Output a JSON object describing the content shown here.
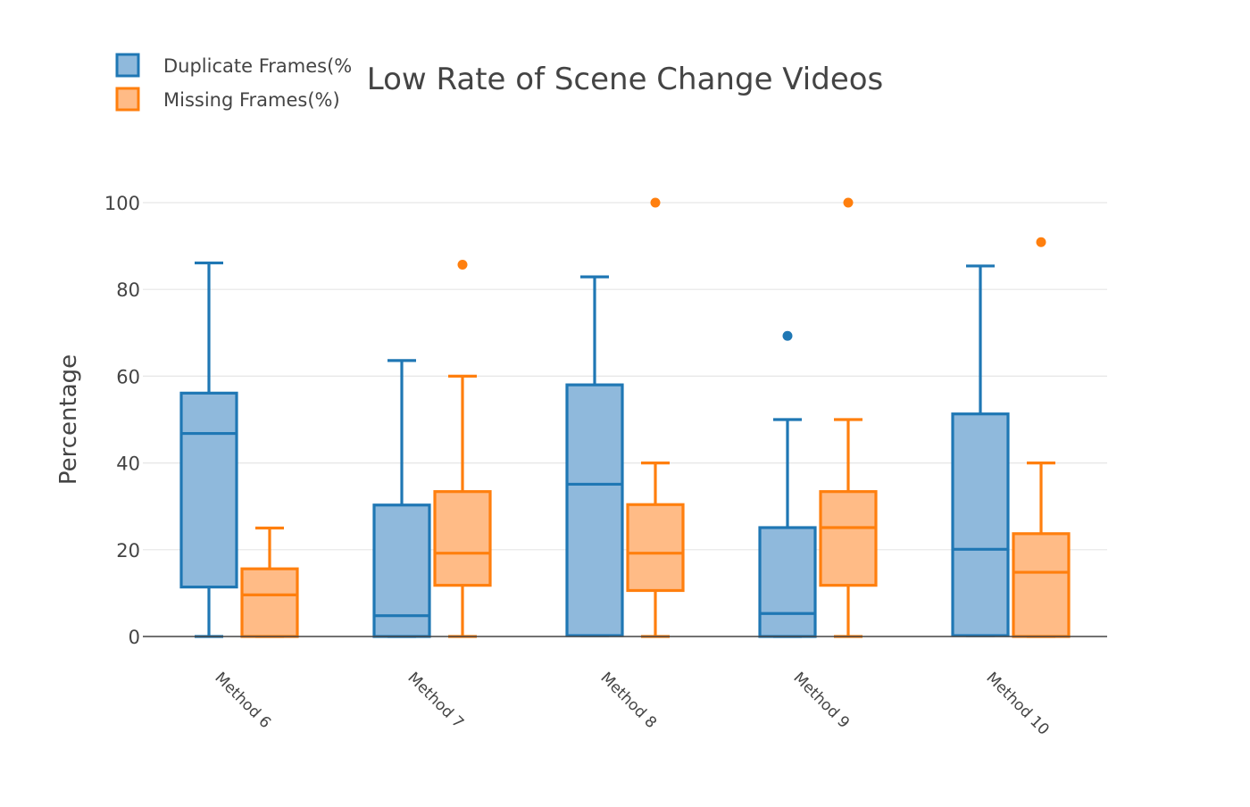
{
  "chart_data": {
    "type": "box",
    "title": "Low Rate of Scene Change Videos",
    "ylabel": "Percentage",
    "xlabel": "",
    "ylim": [
      0,
      100
    ],
    "yticks": [
      0,
      20,
      40,
      60,
      80,
      100
    ],
    "grid": true,
    "legend_position": "top-left",
    "categories": [
      "Method 6",
      "Method 7",
      "Method 8",
      "Method 9",
      "Method 10"
    ],
    "series": [
      {
        "name": "Duplicate Frames(%",
        "color": "#1f77b4",
        "fill": "#8fb9dc",
        "boxes": [
          {
            "min": 0,
            "q1": 11.4,
            "median": 46.8,
            "q3": 56.1,
            "max": 86.1,
            "outliers": []
          },
          {
            "min": 0,
            "q1": 0,
            "median": 4.8,
            "q3": 30.3,
            "max": 63.6,
            "outliers": []
          },
          {
            "min": 0.2,
            "q1": 0.2,
            "median": 35.1,
            "q3": 58.0,
            "max": 82.9,
            "outliers": []
          },
          {
            "min": 0,
            "q1": 0,
            "median": 5.3,
            "q3": 25.1,
            "max": 50.0,
            "outliers": [
              69.3
            ]
          },
          {
            "min": 0.2,
            "q1": 0.2,
            "median": 20.1,
            "q3": 51.3,
            "max": 85.4,
            "outliers": []
          }
        ]
      },
      {
        "name": "Missing Frames(%)",
        "color": "#ff7f0e",
        "fill": "#ffbb86",
        "boxes": [
          {
            "min": 0,
            "q1": 0,
            "median": 9.6,
            "q3": 15.6,
            "max": 25.0,
            "outliers": []
          },
          {
            "min": 0,
            "q1": 11.8,
            "median": 19.2,
            "q3": 33.4,
            "max": 60.0,
            "outliers": [
              85.7
            ]
          },
          {
            "min": 0,
            "q1": 10.6,
            "median": 19.2,
            "q3": 30.4,
            "max": 40.0,
            "outliers": [
              100
            ]
          },
          {
            "min": 0,
            "q1": 11.8,
            "median": 25.1,
            "q3": 33.4,
            "max": 50.0,
            "outliers": [
              100
            ]
          },
          {
            "min": 0,
            "q1": 0,
            "median": 14.8,
            "q3": 23.7,
            "max": 40.0,
            "outliers": [
              90.9
            ]
          }
        ]
      }
    ]
  }
}
